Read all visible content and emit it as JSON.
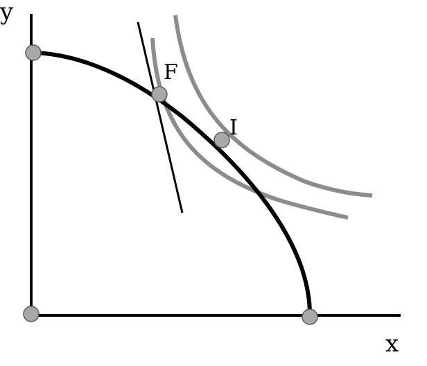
{
  "axes": {
    "x_label": "x",
    "y_label": "y"
  },
  "points": {
    "tangency_label": "F",
    "intersection_label": "I"
  },
  "colors": {
    "frontier": "#000000",
    "indifference": "#8c8c8c",
    "point_fill": "#a8a8a8",
    "point_stroke": "#5a5a5a",
    "background": "#ffffff"
  }
}
